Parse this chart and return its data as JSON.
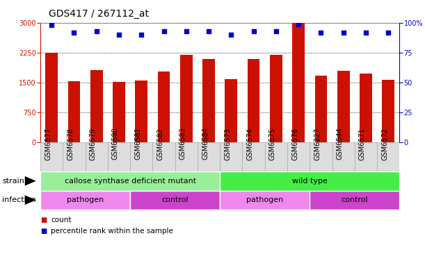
{
  "title": "GDS417 / 267112_at",
  "samples": [
    "GSM6577",
    "GSM6578",
    "GSM6579",
    "GSM6580",
    "GSM6581",
    "GSM6582",
    "GSM6583",
    "GSM6584",
    "GSM6573",
    "GSM6574",
    "GSM6575",
    "GSM6576",
    "GSM6227",
    "GSM6544",
    "GSM6571",
    "GSM6572"
  ],
  "counts": [
    2250,
    1530,
    1820,
    1510,
    1560,
    1780,
    2190,
    2100,
    1590,
    2100,
    2190,
    3000,
    1680,
    1790,
    1720,
    1570
  ],
  "percentiles": [
    98,
    92,
    93,
    90,
    90,
    93,
    93,
    93,
    90,
    93,
    93,
    99,
    92,
    92,
    92,
    92
  ],
  "bar_color": "#cc1100",
  "dot_color": "#0000cc",
  "ylim_left": [
    0,
    3000
  ],
  "ylim_right": [
    0,
    100
  ],
  "yticks_left": [
    0,
    750,
    1500,
    2250,
    3000
  ],
  "yticks_right": [
    0,
    25,
    50,
    75,
    100
  ],
  "strain_labels": [
    {
      "text": "callose synthase deficient mutant",
      "start": 0,
      "end": 8,
      "color": "#99ee99"
    },
    {
      "text": "wild type",
      "start": 8,
      "end": 16,
      "color": "#44ee44"
    }
  ],
  "infection_labels": [
    {
      "text": "pathogen",
      "start": 0,
      "end": 4,
      "color": "#ee88ee"
    },
    {
      "text": "control",
      "start": 4,
      "end": 8,
      "color": "#cc44cc"
    },
    {
      "text": "pathogen",
      "start": 8,
      "end": 12,
      "color": "#ee88ee"
    },
    {
      "text": "control",
      "start": 12,
      "end": 16,
      "color": "#cc44cc"
    }
  ],
  "legend_count_color": "#cc1100",
  "legend_dot_color": "#0000cc",
  "title_fontsize": 10,
  "tick_fontsize": 7,
  "label_fontsize": 8,
  "row_label_fontsize": 8,
  "bar_width": 0.55
}
